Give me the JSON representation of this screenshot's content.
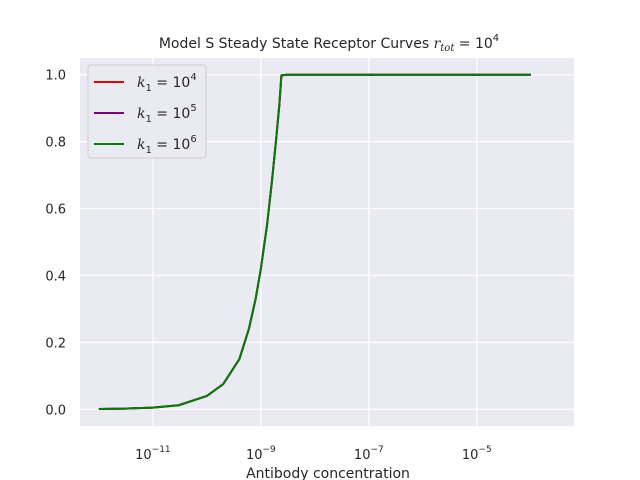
{
  "chart_data": {
    "type": "line",
    "title": "Model S Steady State Receptor Curves",
    "title_math": "r_tot = 10^4",
    "xlabel": "Antibody concentration",
    "ylabel": "",
    "xscale": "log",
    "xlim_log10": [
      -12.35,
      -3.2
    ],
    "ylim": [
      -0.05,
      1.05
    ],
    "x_ticks": [
      {
        "base": "10",
        "exp": "−11",
        "value": 1e-11
      },
      {
        "base": "10",
        "exp": "−9",
        "value": 1e-09
      },
      {
        "base": "10",
        "exp": "−7",
        "value": 1e-07
      },
      {
        "base": "10",
        "exp": "−5",
        "value": 1e-05
      }
    ],
    "y_ticks": [
      "0.0",
      "0.2",
      "0.4",
      "0.6",
      "0.8",
      "1.0"
    ],
    "grid": true,
    "background": "#eaeaf2",
    "legend_position": "top-left",
    "x": [
      1e-12,
      3e-12,
      1e-11,
      3e-11,
      1e-10,
      2e-10,
      4e-10,
      6e-10,
      8e-10,
      1e-09,
      1.3e-09,
      1.6e-09,
      1.9e-09,
      2.2e-09,
      2.4e-09,
      3e-09,
      1e-08,
      1e-07,
      1e-06,
      1e-05,
      0.0001
    ],
    "series": [
      {
        "name": "k_1 = 10^4",
        "label_base": "k",
        "label_sub": "1",
        "label_exp": "4",
        "color": "#e00000",
        "values": [
          0.001,
          0.002,
          0.005,
          0.012,
          0.04,
          0.075,
          0.15,
          0.24,
          0.33,
          0.42,
          0.55,
          0.68,
          0.8,
          0.91,
          0.998,
          1.0,
          1.0,
          1.0,
          1.0,
          1.0,
          1.0
        ]
      },
      {
        "name": "k_1 = 10^5",
        "label_base": "k",
        "label_sub": "1",
        "label_exp": "5",
        "color": "#800080",
        "values": [
          0.001,
          0.002,
          0.005,
          0.012,
          0.04,
          0.075,
          0.15,
          0.24,
          0.33,
          0.42,
          0.55,
          0.68,
          0.8,
          0.91,
          0.998,
          1.0,
          1.0,
          1.0,
          1.0,
          1.0,
          1.0
        ]
      },
      {
        "name": "k_1 = 10^6",
        "label_base": "k",
        "label_sub": "1",
        "label_exp": "6",
        "color": "#008000",
        "values": [
          0.001,
          0.002,
          0.005,
          0.012,
          0.04,
          0.075,
          0.15,
          0.24,
          0.33,
          0.42,
          0.55,
          0.68,
          0.8,
          0.91,
          0.998,
          1.0,
          1.0,
          1.0,
          1.0,
          1.0,
          1.0
        ]
      }
    ]
  }
}
